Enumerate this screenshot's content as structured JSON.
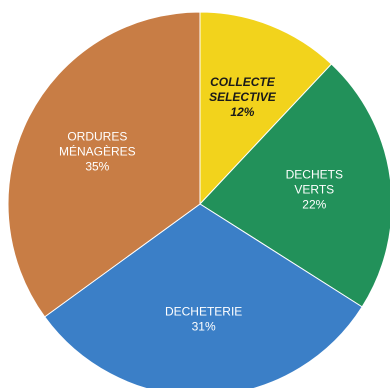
{
  "chart_data": {
    "type": "pie",
    "slices": [
      {
        "label_lines": [
          "COLLECTE",
          "SELECTIVE"
        ],
        "value": 12,
        "value_label": "12%",
        "color": "#f2d31c",
        "text_color": "#1a1a1a",
        "bold": true
      },
      {
        "label_lines": [
          "DECHETS",
          "VERTS"
        ],
        "value": 22,
        "value_label": "22%",
        "color": "#22915a",
        "text_color": "#ffffff",
        "bold": false
      },
      {
        "label_lines": [
          "DECHETERIE"
        ],
        "value": 31,
        "value_label": "31%",
        "color": "#3b7fc7",
        "text_color": "#ffffff",
        "bold": false
      },
      {
        "label_lines": [
          "ORDURES",
          "MÉNAGÈRES"
        ],
        "value": 35,
        "value_label": "35%",
        "color": "#c87d45",
        "text_color": "#ffffff",
        "bold": false
      }
    ],
    "start": "12 o'clock",
    "direction": "clockwise",
    "legend": "none"
  }
}
